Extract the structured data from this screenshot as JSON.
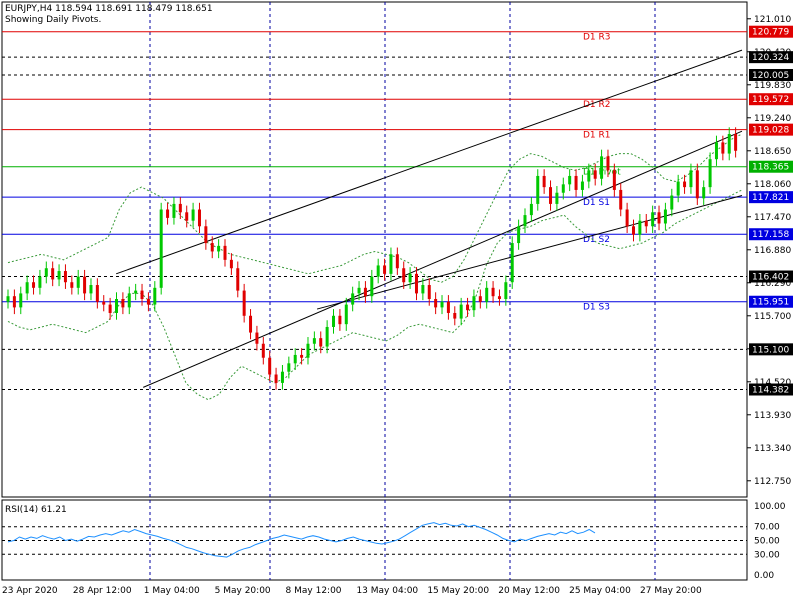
{
  "header": {
    "symbol_line": "EURJPY,H4  118.594 118.691 118.479 118.651",
    "indicator_note": "Showing Daily Pivots."
  },
  "rsi": {
    "label": "RSI(14) 61.21",
    "ticks": [
      "100.00",
      "70.00",
      "50.00",
      "30.00",
      "0.00"
    ]
  },
  "colors": {
    "bull": "#00c800",
    "bear": "#e00000",
    "resistance": "#e00000",
    "support": "#0000e0",
    "pivot": "#00b000",
    "bands": "#3a9a3a",
    "rsi_line": "#1e90ff",
    "grid": "#0000a0",
    "label_bg_dark": "#000000",
    "label_bg_red": "#e00000",
    "label_bg_blue": "#0000e0",
    "label_bg_green": "#00b000"
  },
  "chart_data": {
    "type": "candlestick",
    "price_axis_ticks": [
      "121.010",
      "120.420",
      "119.830",
      "119.240",
      "118.650",
      "118.060",
      "117.470",
      "116.880",
      "116.290",
      "115.700",
      "115.110",
      "114.520",
      "113.930",
      "113.340",
      "112.750"
    ],
    "time_axis_labels": [
      "23 Apr 2020",
      "28 Apr 12:00",
      "1 May 04:00",
      "5 May 20:00",
      "8 May 12:00",
      "13 May 04:00",
      "15 May 20:00",
      "20 May 12:00",
      "25 May 04:00",
      "27 May 20:00"
    ],
    "pivot_levels": [
      {
        "name": "D1 R3",
        "value": 120.779,
        "label": "120.779",
        "kind": "resistance"
      },
      {
        "name": "D1 R2",
        "value": 119.572,
        "label": "119.572",
        "kind": "resistance"
      },
      {
        "name": "D1 R1",
        "value": 119.028,
        "label": "119.028",
        "kind": "resistance"
      },
      {
        "name": "D1 Pivot",
        "value": 118.365,
        "label": "118.365",
        "kind": "pivot"
      },
      {
        "name": "D1 S1",
        "value": 117.821,
        "label": "117.821",
        "kind": "support"
      },
      {
        "name": "D1 S2",
        "value": 117.158,
        "label": "117.158",
        "kind": "support"
      },
      {
        "name": "D1 S3",
        "value": 115.951,
        "label": "115.951",
        "kind": "support"
      }
    ],
    "dashed_levels": [
      {
        "value": 120.324,
        "label": "120.324"
      },
      {
        "value": 120.005,
        "label": "120.005"
      },
      {
        "value": 116.402,
        "label": "116.402"
      },
      {
        "value": 115.1,
        "label": "115.100"
      },
      {
        "value": 114.382,
        "label": "114.382"
      }
    ],
    "channel_lines": [
      {
        "from": {
          "bar": 28,
          "price": 116.45
        },
        "to": {
          "bar": 190,
          "price": 120.45
        }
      },
      {
        "from": {
          "bar": 35,
          "price": 114.42
        },
        "to": {
          "bar": 190,
          "price": 119.0
        }
      },
      {
        "from": {
          "bar": 80,
          "price": 115.82
        },
        "to": {
          "bar": 190,
          "price": 117.85
        }
      }
    ],
    "closes": [
      116.05,
      115.85,
      116.1,
      116.3,
      116.2,
      116.4,
      116.55,
      116.35,
      116.5,
      116.3,
      116.2,
      116.4,
      116.1,
      116.25,
      115.95,
      115.9,
      115.75,
      116.0,
      115.85,
      116.1,
      116.15,
      116.0,
      115.9,
      116.2,
      117.6,
      117.45,
      117.7,
      117.55,
      117.4,
      117.6,
      117.3,
      117.0,
      116.85,
      116.95,
      116.7,
      116.55,
      116.15,
      115.7,
      115.4,
      115.2,
      114.95,
      114.65,
      114.5,
      114.7,
      114.85,
      115.0,
      114.95,
      115.2,
      115.3,
      115.15,
      115.5,
      115.7,
      115.55,
      115.9,
      116.1,
      116.2,
      116.05,
      116.4,
      116.6,
      116.45,
      116.8,
      116.55,
      116.3,
      116.45,
      116.1,
      116.25,
      116.0,
      115.85,
      115.95,
      115.75,
      115.65,
      115.9,
      115.8,
      116.05,
      115.95,
      116.2,
      116.05,
      116.0,
      116.3,
      117.0,
      117.3,
      117.5,
      117.7,
      118.2,
      118.0,
      117.7,
      117.9,
      118.05,
      118.2,
      117.95,
      118.1,
      118.3,
      118.15,
      118.55,
      118.3,
      117.95,
      117.6,
      117.3,
      117.15,
      117.4,
      117.3,
      117.55,
      117.35,
      117.6,
      117.85,
      118.1,
      118.0,
      118.3,
      117.8,
      118.0,
      118.5,
      118.8,
      118.6,
      118.95,
      118.65
    ],
    "upper_band": [
      116.65,
      116.7,
      116.75,
      116.8,
      116.75,
      116.7,
      116.8,
      116.9,
      117.0,
      117.1,
      117.6,
      117.9,
      118.0,
      117.9,
      117.8,
      117.6,
      117.4,
      117.2,
      117.0,
      116.9,
      116.8,
      116.75,
      116.7,
      116.65,
      116.6,
      116.55,
      116.5,
      116.45,
      116.5,
      116.55,
      116.6,
      116.7,
      116.8,
      116.85,
      116.8,
      116.75,
      116.65,
      116.5,
      116.35,
      116.3,
      116.4,
      116.7,
      117.1,
      117.5,
      117.9,
      118.3,
      118.5,
      118.6,
      118.55,
      118.45,
      118.35,
      118.3,
      118.35,
      118.45,
      118.55,
      118.6,
      118.6,
      118.5,
      118.35,
      118.15,
      118.1,
      118.2,
      118.35,
      118.55,
      118.7,
      118.85,
      118.95
    ],
    "lower_band": [
      115.6,
      115.5,
      115.45,
      115.5,
      115.55,
      115.5,
      115.45,
      115.4,
      115.5,
      115.6,
      115.9,
      116.1,
      116.1,
      115.9,
      115.5,
      115.0,
      114.5,
      114.3,
      114.2,
      114.3,
      114.6,
      114.8,
      114.7,
      114.6,
      114.5,
      114.6,
      114.8,
      115.0,
      115.1,
      115.2,
      115.3,
      115.4,
      115.35,
      115.3,
      115.25,
      115.35,
      115.5,
      115.55,
      115.5,
      115.45,
      115.4,
      115.6,
      116.0,
      116.6,
      117.0,
      117.2,
      117.25,
      117.3,
      117.4,
      117.45,
      117.5,
      117.3,
      117.15,
      117.0,
      116.95,
      116.9,
      116.95,
      117.0,
      117.1,
      117.2,
      117.35,
      117.45,
      117.55,
      117.65,
      117.75,
      117.85,
      117.95
    ],
    "rsi_values": [
      48,
      50,
      55,
      52,
      55,
      53,
      57,
      54,
      52,
      55,
      50,
      52,
      49,
      52,
      56,
      55,
      58,
      60,
      58,
      61,
      64,
      62,
      66,
      63,
      60,
      58,
      56,
      53,
      51,
      48,
      44,
      40,
      38,
      35,
      32,
      30,
      28,
      27,
      26,
      30,
      35,
      38,
      40,
      44,
      47,
      50,
      53,
      55,
      58,
      56,
      54,
      52,
      55,
      57,
      55,
      52,
      50,
      48,
      50,
      53,
      55,
      52,
      50,
      48,
      46,
      45,
      47,
      49,
      52,
      57,
      62,
      67,
      72,
      74,
      76,
      73,
      75,
      72,
      71,
      74,
      70,
      72,
      69,
      66,
      62,
      58,
      53,
      50,
      48,
      52,
      50,
      53,
      56,
      58,
      60,
      58,
      62,
      60,
      64,
      60,
      62,
      66,
      61
    ]
  }
}
